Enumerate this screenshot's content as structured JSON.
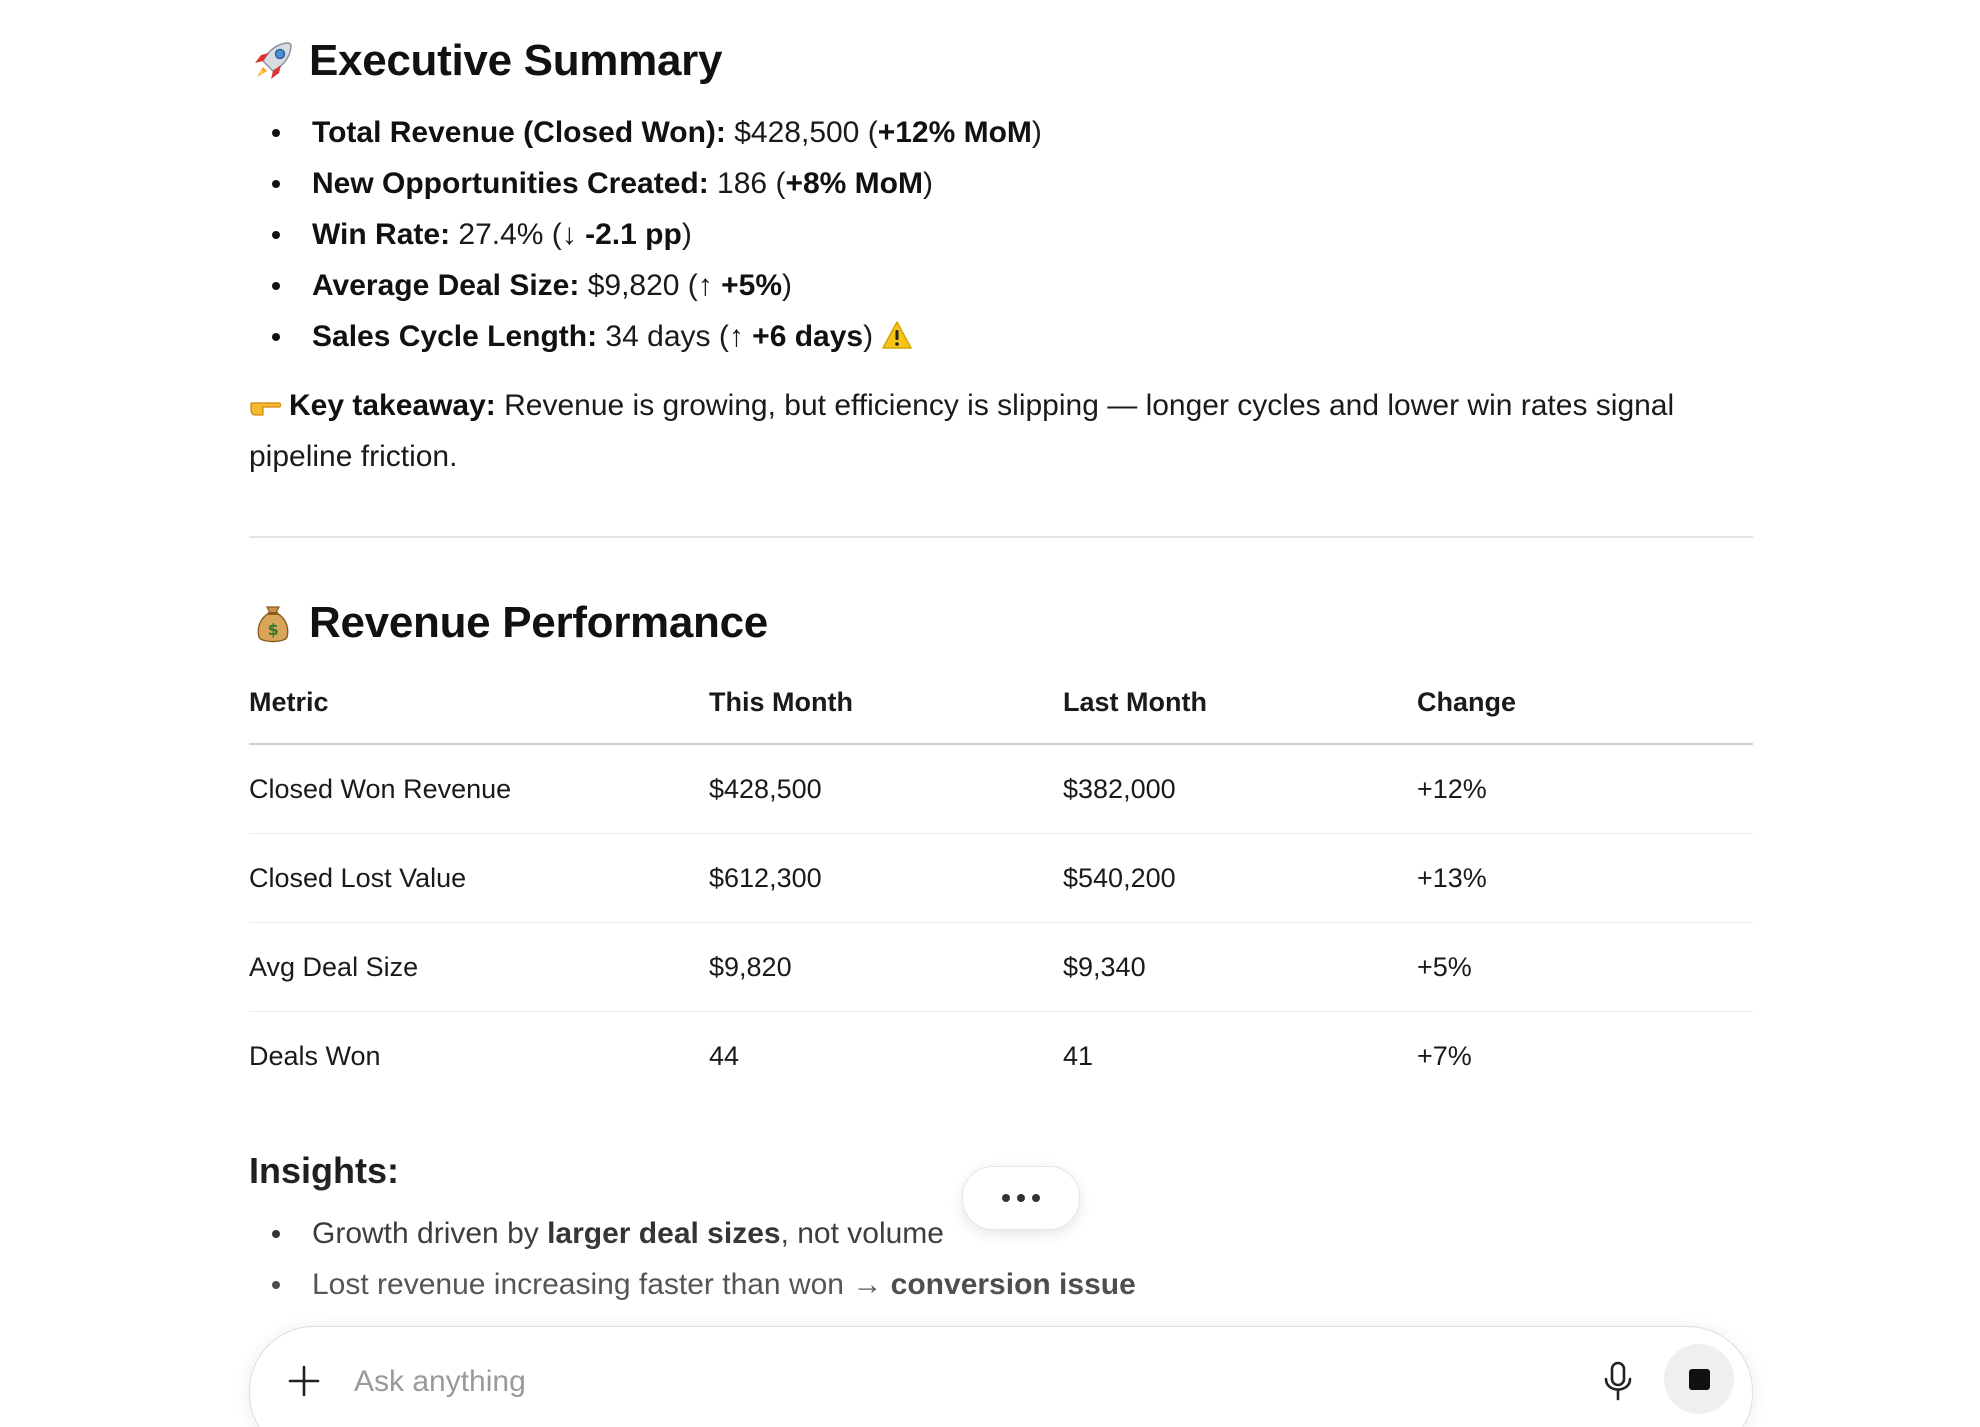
{
  "executive_summary": {
    "title": "Executive Summary",
    "icon": "rocket-icon",
    "items": [
      {
        "label": "Total Revenue (Closed Won):",
        "value": " $428,500 (",
        "emph": "+12% MoM",
        "tail": ")"
      },
      {
        "label": "New Opportunities Created:",
        "value": " 186 (",
        "emph": "+8% MoM",
        "tail": ")"
      },
      {
        "label": "Win Rate:",
        "value": " 27.4% (↓ ",
        "emph": "-2.1 pp",
        "tail": ")"
      },
      {
        "label": "Average Deal Size:",
        "value": " $9,820 (↑ ",
        "emph": "+5%",
        "tail": ")"
      },
      {
        "label": "Sales Cycle Length:",
        "value": " 34 days (↑ ",
        "emph": "+6 days",
        "tail": ") "
      }
    ],
    "warning_icon": "warning-icon",
    "takeaway_label": "Key takeaway:",
    "takeaway_text": " Revenue is growing, but efficiency is slipping — longer cycles and lower win rates signal pipeline friction.",
    "takeaway_icon": "pointing-hand-icon"
  },
  "revenue_performance": {
    "title": "Revenue Performance",
    "icon": "money-bag-icon",
    "table": {
      "headers": [
        "Metric",
        "This Month",
        "Last Month",
        "Change"
      ],
      "rows": [
        [
          "Closed Won Revenue",
          "$428,500",
          "$382,000",
          "+12%"
        ],
        [
          "Closed Lost Value",
          "$612,300",
          "$540,200",
          "+13%"
        ],
        [
          "Avg Deal Size",
          "$9,820",
          "$9,340",
          "+5%"
        ],
        [
          "Deals Won",
          "44",
          "41",
          "+7%"
        ]
      ]
    }
  },
  "insights": {
    "title": "Insights:",
    "items": [
      {
        "pre": "Growth driven by ",
        "emph": "larger deal sizes",
        "post": ", not volume"
      },
      {
        "pre": "Lost revenue increasing faster than won → ",
        "emph": "conversion issue",
        "post": ""
      }
    ]
  },
  "composer": {
    "placeholder": "Ask anything",
    "value": "",
    "icons": [
      "plus-icon",
      "microphone-icon",
      "stop-icon"
    ]
  },
  "floating": {
    "icon": "more-options-icon"
  },
  "colors": {
    "text": "#1a1a1a",
    "divider": "#e3e3e3",
    "stop_button_bg": "#efefef",
    "warning": "#f5c518"
  }
}
